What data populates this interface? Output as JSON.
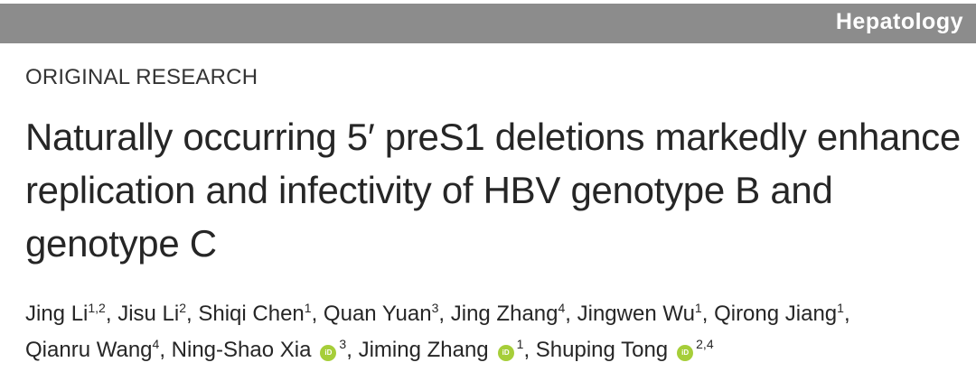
{
  "header": {
    "journal": "Hepatology"
  },
  "article": {
    "section": "ORIGINAL RESEARCH",
    "title": "Naturally occurring 5′ preS1 deletions markedly enhance replication and infectivity of HBV genotype B and genotype C",
    "authors": [
      {
        "name": "Jing Li",
        "affil": "1,2",
        "sep": ", "
      },
      {
        "name": "Jisu Li",
        "affil": "2",
        "sep": ", "
      },
      {
        "name": "Shiqi Chen",
        "affil": "1",
        "sep": ", "
      },
      {
        "name": "Quan Yuan",
        "affil": "3",
        "sep": ", "
      },
      {
        "name": "Jing Zhang",
        "affil": "4",
        "sep": ", "
      },
      {
        "name": "Jingwen Wu",
        "affil": "1",
        "sep": ", "
      },
      {
        "name": "Qirong Jiang",
        "affil": "1",
        "sep": ", "
      },
      {
        "name": "Qianru Wang",
        "affil": "4",
        "sep": ", "
      },
      {
        "name": "Ning-Shao Xia",
        "orcid": "iD",
        "affil": "3",
        "sep": ", "
      },
      {
        "name": "Jiming Zhang",
        "orcid": "iD",
        "affil": "1",
        "sep": ", "
      },
      {
        "name": "Shuping Tong",
        "orcid": "iD",
        "affil": "2,4",
        "sep": ""
      }
    ]
  },
  "colors": {
    "header_bar": "#8c8c8c",
    "orcid": "#a6ce39",
    "text": "#262626"
  }
}
